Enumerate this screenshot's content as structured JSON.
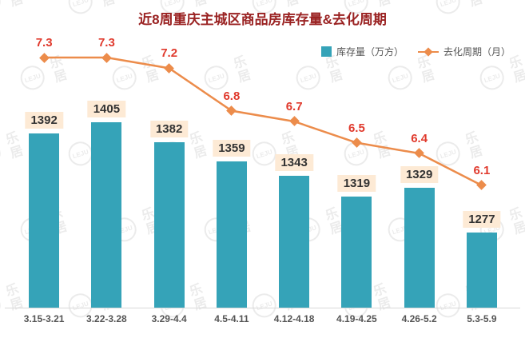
{
  "title": "近8周重庆主城区商品房库存量&去化周期",
  "watermark": {
    "text": "乐居",
    "logo": "LEJU"
  },
  "legend": [
    {
      "label": "库存量（万方）",
      "type": "bar"
    },
    {
      "label": "去化周期（月）",
      "type": "line"
    }
  ],
  "chart_data": {
    "type": "bar+line",
    "title": "近8周重庆主城区商品房库存量&去化周期",
    "categories": [
      "3.15-3.21",
      "3.22-3.28",
      "3.29-4.4",
      "4.5-4.11",
      "4.12-4.18",
      "4.19-4.25",
      "4.26-5.2",
      "5.3-5.9"
    ],
    "series": [
      {
        "name": "库存量（万方）",
        "type": "bar",
        "values": [
          1392,
          1405,
          1382,
          1359,
          1343,
          1319,
          1329,
          1277
        ]
      },
      {
        "name": "去化周期（月）",
        "type": "line",
        "values": [
          7.3,
          7.3,
          7.2,
          6.8,
          6.7,
          6.5,
          6.4,
          6.1
        ]
      }
    ],
    "bar_axis_range": [
      1190,
      1440
    ],
    "line_axis_range": [
      5.8,
      7.8
    ],
    "grid": false,
    "legend_position": "top-right",
    "xlabel": "",
    "ylabel": ""
  },
  "colors": {
    "bar": "#35a3b8",
    "line": "#ec8c4b",
    "bar_label_bg": "#fdead5",
    "bar_label_text": "#333333",
    "line_label_text": "#e03a2d",
    "title": "#9a2222",
    "axis_label": "#555555",
    "watermark": "#dcdcdc"
  }
}
